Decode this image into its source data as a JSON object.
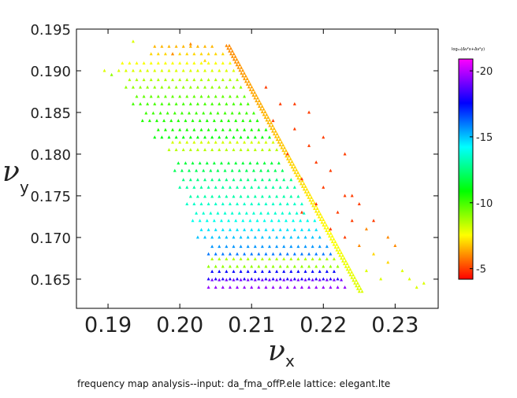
{
  "chart_data": {
    "type": "scatter",
    "title": "",
    "xlabel": "ν",
    "xlabel_sub": "x",
    "ylabel": "ν",
    "ylabel_sub": "y",
    "xlim": [
      0.1856,
      0.236
    ],
    "ylim": [
      0.1615,
      0.195
    ],
    "xticks": [
      "0.19",
      "0.20",
      "0.21",
      "0.22",
      "0.23"
    ],
    "xtick_values": [
      0.19,
      0.2,
      0.21,
      0.22,
      0.23
    ],
    "yticks": [
      "0.165",
      "0.170",
      "0.175",
      "0.180",
      "0.185",
      "0.190",
      "0.195"
    ],
    "ytick_values": [
      0.165,
      0.17,
      0.175,
      0.18,
      0.185,
      0.19,
      0.195
    ],
    "marker": "triangle",
    "colorbar": {
      "label": "log₁₀(Δν²x+Δν²y)",
      "range": [
        -20.9,
        -4.2
      ],
      "ticks": [
        "-5",
        "-10",
        "-15",
        "-20"
      ],
      "tick_values": [
        -5,
        -10,
        -15,
        -20
      ],
      "colormap": "hsv red→yellow→green→cyan→blue→magenta"
    },
    "grid_rows": [
      {
        "y": 0.164,
        "x_min": 0.204,
        "x_max": 0.2235,
        "c": -19.5
      },
      {
        "y": 0.165,
        "x_min": 0.204,
        "x_max": 0.2228,
        "c": -18
      },
      {
        "y": 0.1665,
        "x_min": 0.204,
        "x_max": 0.2222,
        "c": -9
      },
      {
        "y": 0.168,
        "x_min": 0.204,
        "x_max": 0.2212,
        "c": -16
      },
      {
        "y": 0.17,
        "x_min": 0.2025,
        "x_max": 0.22,
        "c": -15
      },
      {
        "y": 0.172,
        "x_min": 0.2018,
        "x_max": 0.2188,
        "c": -14
      },
      {
        "y": 0.174,
        "x_min": 0.201,
        "x_max": 0.2176,
        "c": -13.5
      },
      {
        "y": 0.176,
        "x_min": 0.2,
        "x_max": 0.2164,
        "c": -13
      },
      {
        "y": 0.178,
        "x_min": 0.1993,
        "x_max": 0.2152,
        "c": -12
      },
      {
        "y": 0.1805,
        "x_min": 0.1985,
        "x_max": 0.2137,
        "c": -8.5
      },
      {
        "y": 0.182,
        "x_min": 0.1965,
        "x_max": 0.2128,
        "c": -11
      },
      {
        "y": 0.184,
        "x_min": 0.1948,
        "x_max": 0.2116,
        "c": -10.5
      },
      {
        "y": 0.186,
        "x_min": 0.1935,
        "x_max": 0.2104,
        "c": -10
      },
      {
        "y": 0.188,
        "x_min": 0.1925,
        "x_max": 0.2092,
        "c": -9
      },
      {
        "y": 0.19,
        "x_min": 0.1915,
        "x_max": 0.208,
        "c": -8
      },
      {
        "y": 0.192,
        "x_min": 0.196,
        "x_max": 0.206,
        "c": -7
      }
    ],
    "resonance_line": {
      "from": [
        0.2065,
        0.193
      ],
      "to": [
        0.225,
        0.1635
      ],
      "c_from": -6,
      "c_to": -8,
      "n": 90
    },
    "points": [
      [
        0.1895,
        0.19,
        -8
      ],
      [
        0.1935,
        0.1935,
        -8
      ],
      [
        0.199,
        0.192,
        -6
      ],
      [
        0.2015,
        0.1932,
        -6
      ],
      [
        0.2035,
        0.1912,
        -7
      ],
      [
        0.1905,
        0.1895,
        -9
      ],
      [
        0.213,
        0.184,
        -5
      ],
      [
        0.216,
        0.183,
        -5
      ],
      [
        0.218,
        0.181,
        -5
      ],
      [
        0.219,
        0.179,
        -5
      ],
      [
        0.221,
        0.178,
        -5
      ],
      [
        0.22,
        0.176,
        -5
      ],
      [
        0.223,
        0.175,
        -5
      ],
      [
        0.217,
        0.177,
        -5
      ],
      [
        0.222,
        0.173,
        -5
      ],
      [
        0.224,
        0.172,
        -5
      ],
      [
        0.226,
        0.171,
        -6
      ],
      [
        0.225,
        0.169,
        -6
      ],
      [
        0.227,
        0.168,
        -7
      ],
      [
        0.229,
        0.167,
        -7
      ],
      [
        0.228,
        0.165,
        -8
      ],
      [
        0.231,
        0.166,
        -8
      ],
      [
        0.233,
        0.164,
        -8
      ],
      [
        0.23,
        0.169,
        -6
      ],
      [
        0.223,
        0.17,
        -5
      ],
      [
        0.219,
        0.174,
        -5
      ],
      [
        0.215,
        0.18,
        -5
      ],
      [
        0.214,
        0.186,
        -5
      ],
      [
        0.212,
        0.188,
        -5
      ],
      [
        0.218,
        0.185,
        -5
      ],
      [
        0.226,
        0.166,
        -8
      ],
      [
        0.221,
        0.171,
        -5
      ],
      [
        0.217,
        0.173,
        -5
      ],
      [
        0.224,
        0.175,
        -5
      ],
      [
        0.232,
        0.165,
        -8
      ],
      [
        0.227,
        0.172,
        -5
      ],
      [
        0.22,
        0.182,
        -5
      ],
      [
        0.223,
        0.18,
        -5
      ],
      [
        0.216,
        0.186,
        -5
      ],
      [
        0.225,
        0.174,
        -5
      ],
      [
        0.229,
        0.17,
        -6
      ],
      [
        0.234,
        0.1645,
        -8
      ]
    ]
  },
  "footer": "frequency map analysis--input: da_fma_offP.ele   lattice: elegant.lte"
}
